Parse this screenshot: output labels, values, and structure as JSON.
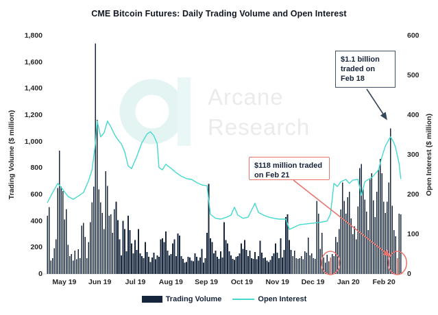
{
  "title": "CME Bitcoin Futures: Daily Trading Volume and Open Interest",
  "watermark": {
    "line1": "Arcane",
    "line2": "Research"
  },
  "left_axis": {
    "title": "Trading Volume ($ million)",
    "ticks": [
      "0",
      "200",
      "400",
      "600",
      "800",
      "1,000",
      "1,200",
      "1,400",
      "1,600",
      "1,800"
    ]
  },
  "right_axis": {
    "title": "Open Interest ($ million)",
    "ticks": [
      "0",
      "100",
      "200",
      "300",
      "400",
      "500",
      "600"
    ]
  },
  "x_axis": {
    "labels": [
      "May 19",
      "Jun 19",
      "Jul 19",
      "Aug 19",
      "Sep 19",
      "Oct 19",
      "Nov 19",
      "Dec 19",
      "Jan 20",
      "Feb 20"
    ]
  },
  "legend": {
    "volume_label": "Trading Volume",
    "open_interest_label": "Open Interest"
  },
  "annotations": {
    "feb18": {
      "text": "$1.1 billion traded on Feb 18"
    },
    "feb21": {
      "text": "$118 million traded on Feb 21"
    }
  },
  "colors": {
    "bar": "#15263c",
    "bar_highlight": "#e05a52",
    "line": "#44d9ce",
    "annotation_red": "#e8736c",
    "annotation_dark": "#36465a",
    "axis_line": "#d9d9d9",
    "watermark_text": "#ebebeb",
    "watermark_ring": "#e3f4f3",
    "watermark_stem": "#e9f8f6"
  },
  "chart_data": {
    "type": "bar+line combo",
    "title": "CME Bitcoin Futures: Daily Trading Volume and Open Interest",
    "x_unit": "trading day, May 2019 - Feb 2020",
    "categories_months": [
      "May 19",
      "Jun 19",
      "Jul 19",
      "Aug 19",
      "Sep 19",
      "Oct 19",
      "Nov 19",
      "Dec 19",
      "Jan 20",
      "Feb 20"
    ],
    "left_ylabel": "Trading Volume ($ million)",
    "right_ylabel": "Open Interest ($ million)",
    "left_ylim": [
      0,
      1800
    ],
    "right_ylim": [
      0,
      600
    ],
    "grid": false,
    "legend_position": "bottom",
    "series": [
      {
        "name": "Trading Volume",
        "type": "bar",
        "axis": "left",
        "unit": "$ million",
        "values": [
          440,
          505,
          100,
          120,
          195,
          260,
          650,
          930,
          660,
          625,
          410,
          490,
          220,
          135,
          150,
          100,
          175,
          110,
          185,
          120,
          365,
          385,
          280,
          120,
          240,
          390,
          540,
          660,
          1740,
          1165,
          640,
          540,
          460,
          340,
          775,
          665,
          440,
          450,
          310,
          490,
          545,
          405,
          260,
          140,
          400,
          340,
          170,
          440,
          330,
          230,
          155,
          255,
          180,
          340,
          155,
          135,
          120,
          240,
          165,
          130,
          90,
          125,
          160,
          110,
          140,
          130,
          260,
          270,
          240,
          320,
          175,
          140,
          150,
          230,
          260,
          135,
          305,
          290,
          135,
          115,
          85,
          90,
          130,
          125,
          100,
          95,
          155,
          130,
          100,
          125,
          190,
          85,
          120,
          310,
          680,
          270,
          240,
          155,
          175,
          130,
          115,
          170,
          125,
          390,
          255,
          230,
          170,
          140,
          115,
          105,
          130,
          135,
          155,
          230,
          190,
          255,
          180,
          135,
          175,
          120,
          115,
          165,
          110,
          135,
          250,
          160,
          120,
          125,
          100,
          90,
          105,
          135,
          155,
          230,
          160,
          120,
          270,
          125,
          180,
          430,
          450,
          255,
          180,
          135,
          175,
          120,
          115,
          120,
          135,
          110,
          170,
          160,
          275,
          140,
          155,
          120,
          115,
          550,
          455,
          190,
          310,
          125,
          85,
          145,
          95,
          124,
          150,
          135,
          280,
          240,
          340,
          485,
          690,
          550,
          455,
          580,
          620,
          420,
          300,
          360,
          260,
          510,
          800,
          830,
          640,
          560,
          470,
          330,
          715,
          760,
          555,
          430,
          620,
          790,
          870,
          760,
          545,
          460,
          545,
          690,
          1100,
          515,
          330,
          285,
          118,
          455,
          450
        ],
        "red_highlight_indices": [
          165,
          204
        ]
      },
      {
        "name": "Open Interest",
        "type": "line",
        "axis": "right",
        "unit": "$ million",
        "points_index_value": [
          [
            0,
            180
          ],
          [
            3,
            205
          ],
          [
            6,
            228
          ],
          [
            9,
            212
          ],
          [
            12,
            195
          ],
          [
            15,
            188
          ],
          [
            18,
            196
          ],
          [
            21,
            205
          ],
          [
            24,
            235
          ],
          [
            26,
            262
          ],
          [
            28,
            330
          ],
          [
            29,
            385
          ],
          [
            31,
            345
          ],
          [
            33,
            355
          ],
          [
            35,
            385
          ],
          [
            37,
            370
          ],
          [
            39,
            352
          ],
          [
            41,
            338
          ],
          [
            43,
            328
          ],
          [
            45,
            308
          ],
          [
            47,
            272
          ],
          [
            49,
            265
          ],
          [
            52,
            295
          ],
          [
            55,
            330
          ],
          [
            58,
            352
          ],
          [
            60,
            358
          ],
          [
            62,
            348
          ],
          [
            64,
            328
          ],
          [
            65,
            268
          ],
          [
            67,
            262
          ],
          [
            69,
            276
          ],
          [
            72,
            266
          ],
          [
            75,
            255
          ],
          [
            78,
            246
          ],
          [
            81,
            240
          ],
          [
            84,
            238
          ],
          [
            87,
            230
          ],
          [
            90,
            224
          ],
          [
            93,
            222
          ],
          [
            95,
            150
          ],
          [
            98,
            140
          ],
          [
            101,
            138
          ],
          [
            104,
            142
          ],
          [
            107,
            148
          ],
          [
            109,
            168
          ],
          [
            111,
            148
          ],
          [
            114,
            140
          ],
          [
            117,
            143
          ],
          [
            121,
            178
          ],
          [
            123,
            155
          ],
          [
            126,
            148
          ],
          [
            129,
            143
          ],
          [
            132,
            140
          ],
          [
            135,
            138
          ],
          [
            139,
            138
          ],
          [
            141,
            112
          ],
          [
            144,
            118
          ],
          [
            147,
            124
          ],
          [
            151,
            126
          ],
          [
            155,
            128
          ],
          [
            159,
            130
          ],
          [
            163,
            133
          ],
          [
            165,
            150
          ],
          [
            167,
            228
          ],
          [
            169,
            220
          ],
          [
            171,
            232
          ],
          [
            174,
            238
          ],
          [
            176,
            228
          ],
          [
            178,
            236
          ],
          [
            181,
            238
          ],
          [
            183,
            198
          ],
          [
            185,
            232
          ],
          [
            187,
            238
          ],
          [
            189,
            242
          ],
          [
            191,
            252
          ],
          [
            193,
            262
          ],
          [
            195,
            295
          ],
          [
            197,
            322
          ],
          [
            199,
            338
          ],
          [
            200,
            345
          ],
          [
            201,
            338
          ],
          [
            202,
            330
          ],
          [
            203,
            318
          ],
          [
            204,
            298
          ],
          [
            205,
            278
          ],
          [
            206,
            240
          ]
        ]
      }
    ],
    "callouts": [
      {
        "text": "$1.1 billion traded on Feb 18",
        "target_index": 200,
        "value": 1100
      },
      {
        "text": "$118 million traded on Feb 21",
        "target_index": 204,
        "value": 118
      }
    ]
  }
}
